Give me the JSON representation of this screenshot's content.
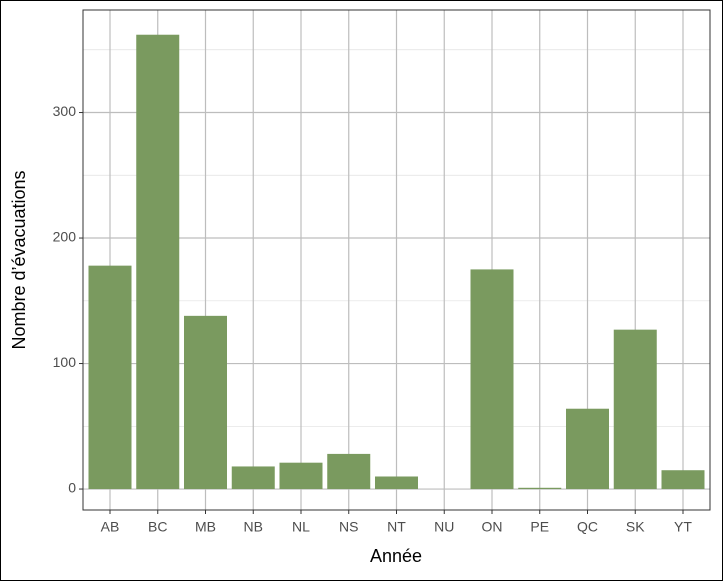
{
  "chart_data": {
    "type": "bar",
    "x_label": "Année",
    "y_label": "Nombre d’évacuations",
    "categories": [
      "AB",
      "BC",
      "MB",
      "NB",
      "NL",
      "NS",
      "NT",
      "NU",
      "ON",
      "PE",
      "QC",
      "SK",
      "YT"
    ],
    "values": [
      178,
      362,
      138,
      18,
      21,
      28,
      10,
      0,
      175,
      1,
      64,
      127,
      15
    ],
    "color": "#7a9a5f",
    "ylim": [
      -16.7,
      381.7
    ],
    "yticks": [
      0,
      100,
      200,
      300
    ],
    "grid": true
  }
}
